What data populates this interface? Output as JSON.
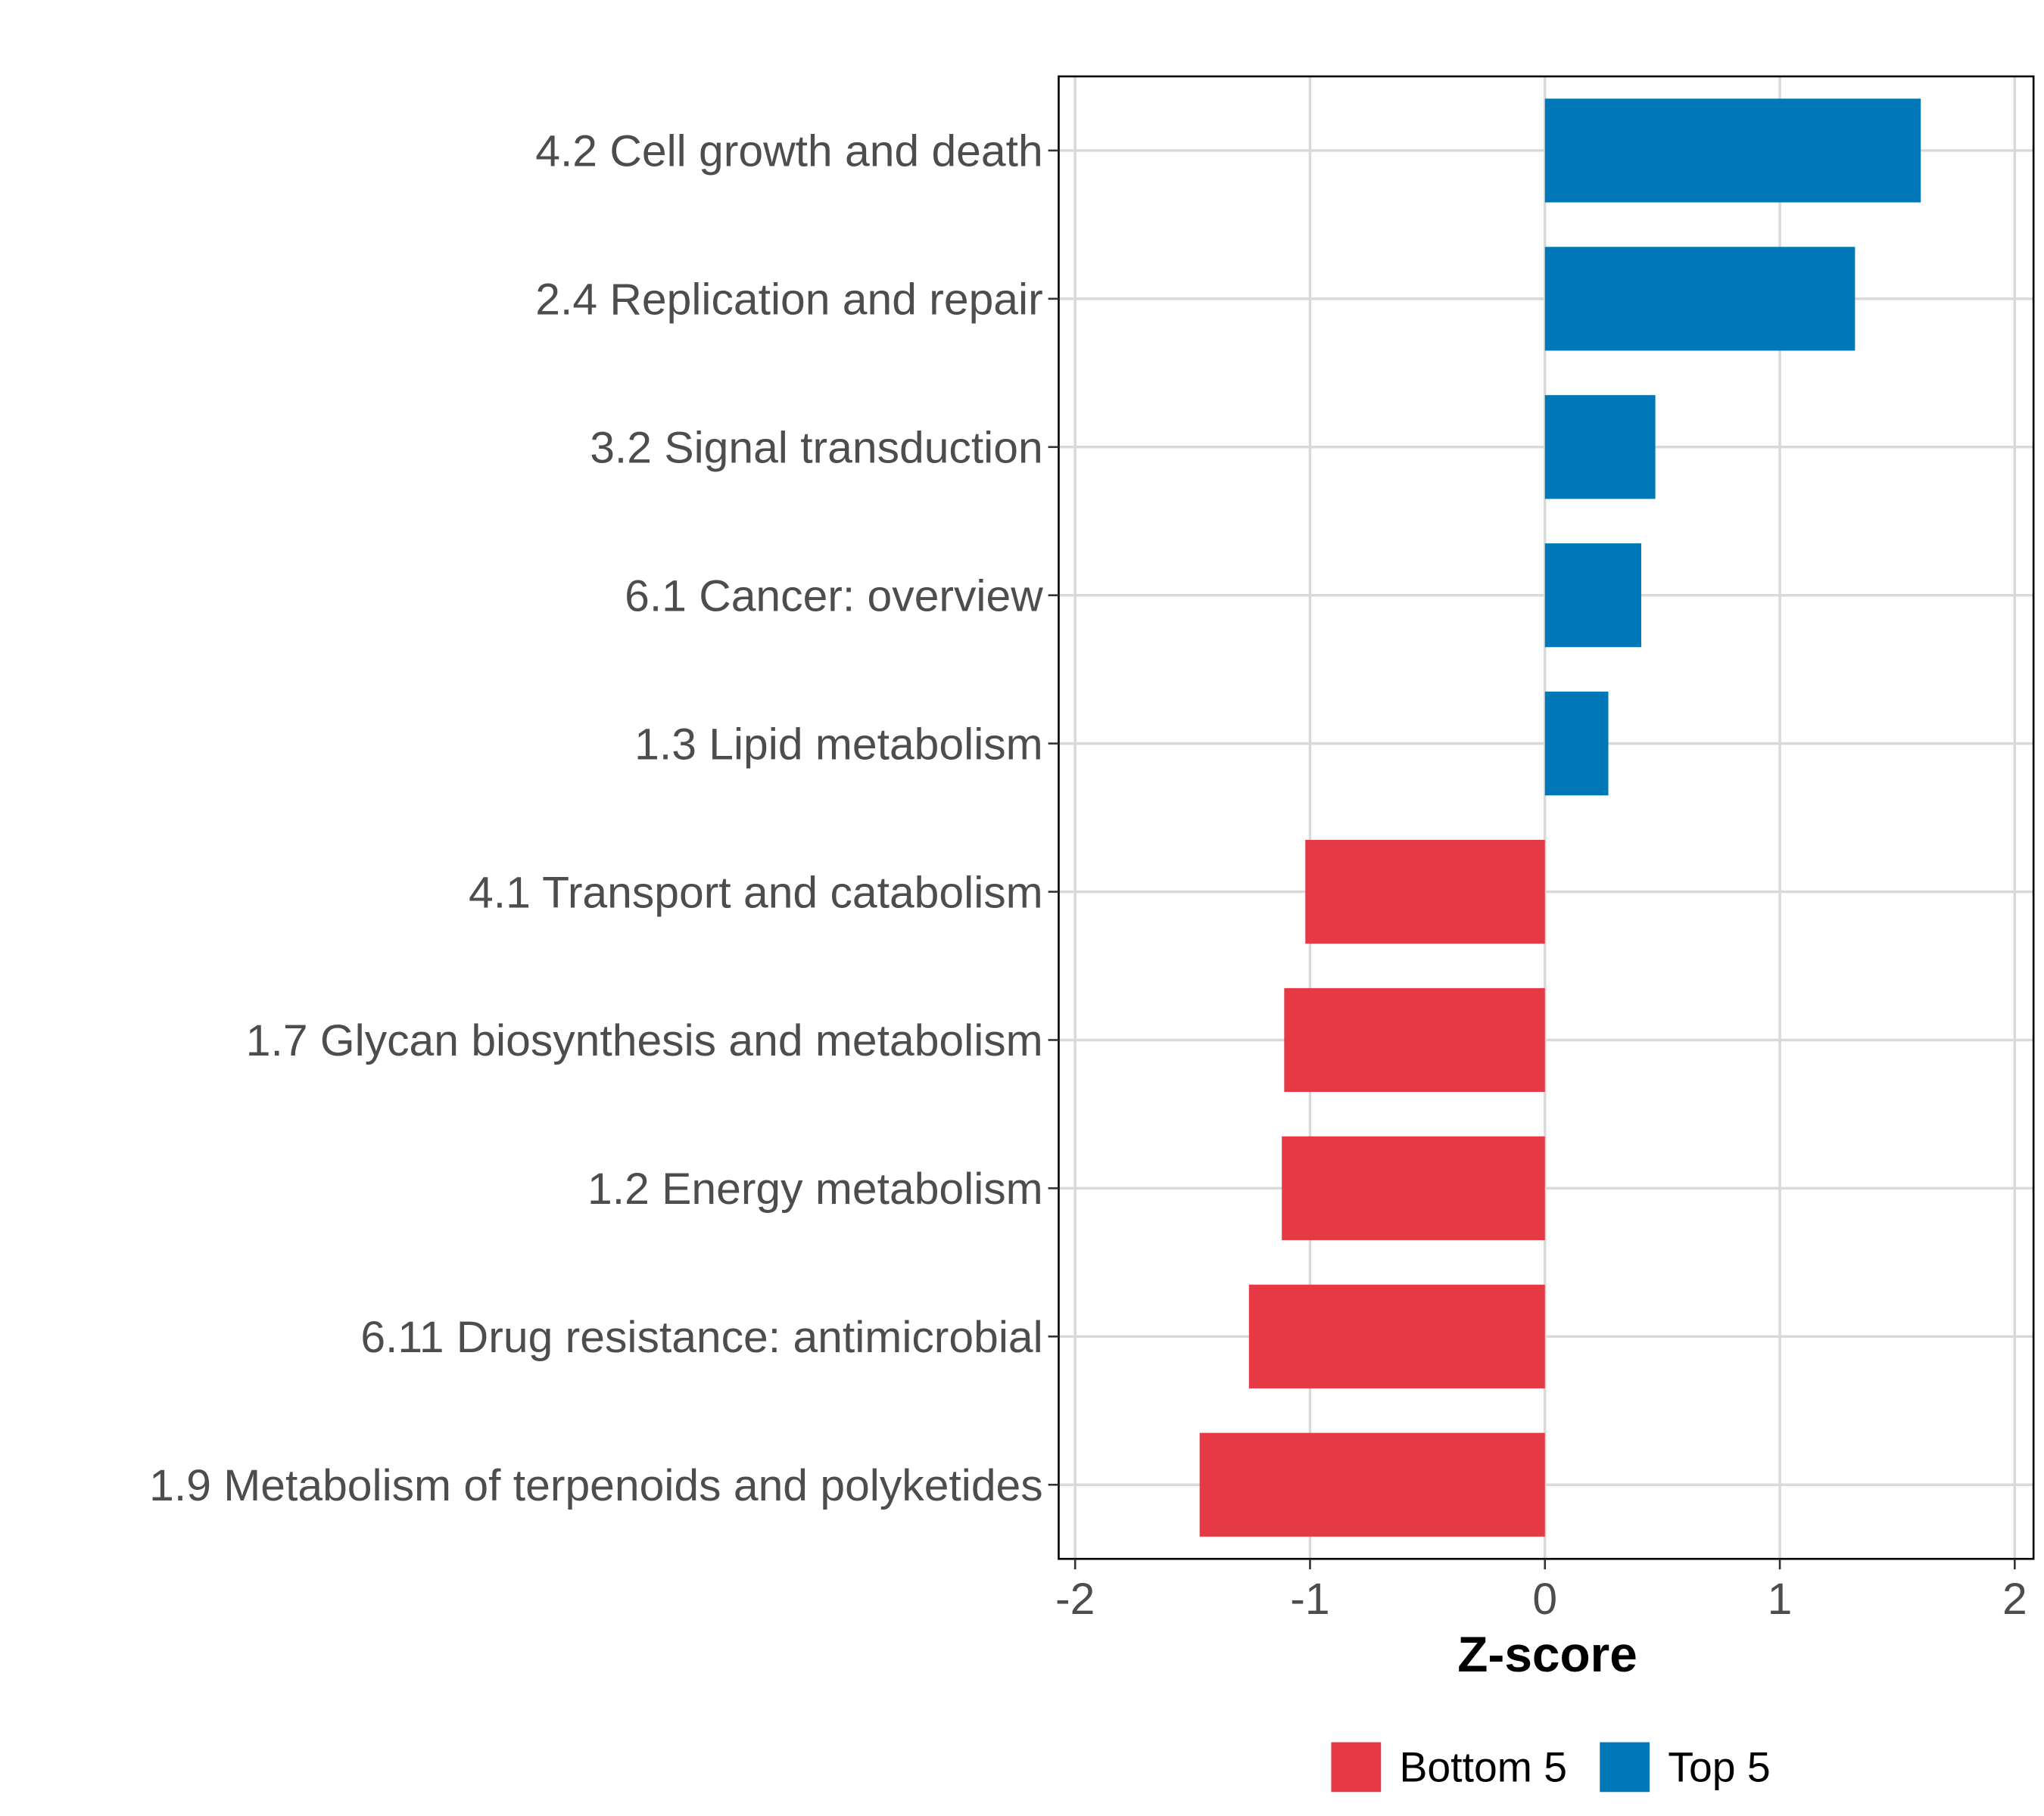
{
  "chart_data": {
    "type": "bar",
    "orientation": "horizontal",
    "title": "",
    "xlabel": "Z-score",
    "ylabel": "",
    "xlim": [
      -2.07,
      2.08
    ],
    "xticks": [
      -2,
      -1,
      0,
      1,
      2
    ],
    "xtick_labels": [
      "-2",
      "-1",
      "0",
      "1",
      "2"
    ],
    "grid": true,
    "legend_position": "bottom",
    "colors": {
      "Bottom 5": "#E63946",
      "Top 5": "#0077B6"
    },
    "legend": [
      "Bottom 5",
      "Top 5"
    ],
    "categories": [
      "4.2 Cell growth and death",
      "2.4 Replication and repair",
      "3.2 Signal transduction",
      "6.1 Cancer: overview",
      "1.3 Lipid metabolism",
      "4.1 Transport and catabolism",
      "1.7 Glycan biosynthesis and metabolism",
      "1.2 Energy metabolism",
      "6.11 Drug resistance: antimicrobial",
      "1.9 Metabolism of terpenoids and polyketides"
    ],
    "values": [
      1.6,
      1.32,
      0.47,
      0.41,
      0.27,
      -1.02,
      -1.11,
      -1.12,
      -1.26,
      -1.47
    ],
    "groups": [
      "Top 5",
      "Top 5",
      "Top 5",
      "Top 5",
      "Top 5",
      "Bottom 5",
      "Bottom 5",
      "Bottom 5",
      "Bottom 5",
      "Bottom 5"
    ]
  }
}
